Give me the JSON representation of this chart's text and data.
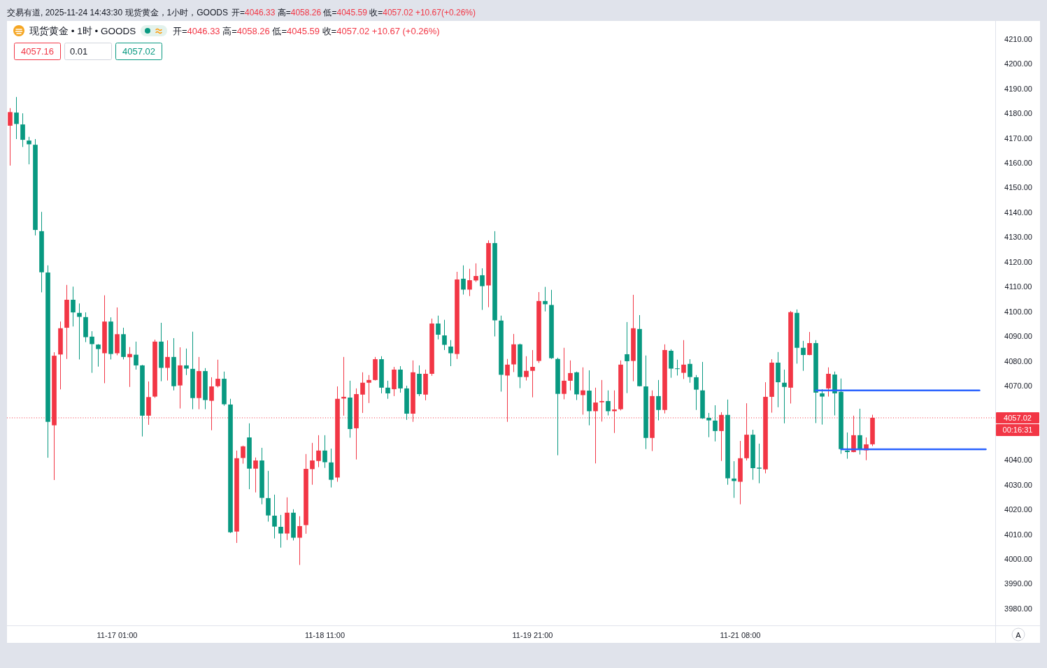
{
  "chart_data": {
    "type": "candlestick",
    "title": "交易有道, 2025-11-24 14:43:30 现货黄金，1小时，GOODS",
    "subtitle": "现货黄金 • 1时 • GOODS",
    "annotations": [
      "开=4046.33 高=4058.26 低=4045.59 收=4057.02 +10.67(+0.26%)",
      "开=4046.33 高=4058.26 低=4045.59 收=4057.02 +10.67 (+0.26%)",
      "4057.16",
      "0.01",
      "4057.02",
      "00:16:31",
      "A"
    ],
    "categories": [
      null,
      null,
      null,
      null,
      null,
      null,
      null,
      null,
      null,
      null,
      null,
      null,
      null,
      null,
      null,
      null,
      null,
      "11-17 01:00",
      null,
      null,
      null,
      null,
      null,
      null,
      null,
      null,
      null,
      null,
      null,
      null,
      null,
      null,
      null,
      null,
      null,
      null,
      null,
      null,
      null,
      null,
      null,
      null,
      null,
      null,
      null,
      null,
      null,
      null,
      null,
      null,
      "11-18 11:00",
      null,
      null,
      null,
      null,
      null,
      null,
      null,
      null,
      null,
      null,
      null,
      null,
      null,
      null,
      null,
      null,
      null,
      null,
      null,
      null,
      null,
      null,
      null,
      null,
      null,
      null,
      null,
      null,
      null,
      null,
      null,
      null,
      "11-19 21:00",
      null,
      null,
      null,
      null,
      null,
      null,
      null,
      null,
      null,
      null,
      null,
      null,
      null,
      null,
      null,
      null,
      null,
      null,
      null,
      null,
      null,
      null,
      null,
      null,
      null,
      null,
      null,
      null,
      null,
      null,
      null,
      null,
      "11-21 08:00",
      null,
      null,
      null,
      null,
      null,
      null,
      null,
      null,
      null,
      null,
      null,
      null,
      null,
      null,
      null,
      null,
      null,
      null,
      null,
      null,
      null,
      null,
      null,
      null,
      null,
      null,
      null,
      null,
      null,
      null,
      null,
      null,
      null,
      null,
      null,
      null,
      null,
      null,
      null,
      null
    ],
    "ohlc": [
      [
        4175.0,
        4182.1,
        4158.9,
        4180.5
      ],
      [
        4180.3,
        4186.6,
        4169.6,
        4175.7
      ],
      [
        4175.5,
        4180.0,
        4166.4,
        4169.3
      ],
      [
        4169.0,
        4170.5,
        4159.4,
        4167.5
      ],
      [
        4167.3,
        4169.6,
        4130.7,
        4132.9
      ],
      [
        4132.4,
        4140.2,
        4107.7,
        4115.8
      ],
      [
        4115.7,
        4118.6,
        4040.9,
        4055.4
      ],
      [
        4054.0,
        4083.5,
        4031.9,
        4082.1
      ],
      [
        4082.6,
        4095.9,
        4068.5,
        4093.2
      ],
      [
        4093.4,
        4110.7,
        4080.8,
        4104.7
      ],
      [
        4104.7,
        4110.0,
        4093.9,
        4099.6
      ],
      [
        4099.4,
        4103.2,
        4080.6,
        4097.8
      ],
      [
        4097.7,
        4099.6,
        4087.6,
        4089.6
      ],
      [
        4089.8,
        4092.0,
        4075.2,
        4086.8
      ],
      [
        4086.6,
        4086.8,
        4077.7,
        4084.8
      ],
      [
        4083.1,
        4106.5,
        4071.0,
        4095.9
      ],
      [
        4095.9,
        4097.6,
        4080.6,
        4082.8
      ],
      [
        4083.1,
        4101.6,
        4082.3,
        4090.8
      ],
      [
        4090.8,
        4093.4,
        4080.6,
        4081.6
      ],
      [
        4081.5,
        4085.6,
        4069.5,
        4082.8
      ],
      [
        4082.5,
        4087.8,
        4076.5,
        4078.2
      ],
      [
        4078.2,
        4078.4,
        4049.5,
        4057.9
      ],
      [
        4057.9,
        4071.7,
        4054.2,
        4065.4
      ],
      [
        4065.6,
        4088.6,
        4065.1,
        4087.8
      ],
      [
        4087.8,
        4095.4,
        4071.8,
        4077.2
      ],
      [
        4077.2,
        4088.3,
        4072.1,
        4081.6
      ],
      [
        4081.6,
        4089.2,
        4068.1,
        4069.8
      ],
      [
        4070.1,
        4085.5,
        4060.8,
        4078.2
      ],
      [
        4078.2,
        4085.0,
        4074.3,
        4076.9
      ],
      [
        4076.8,
        4091.8,
        4060.5,
        4065.0
      ],
      [
        4065.0,
        4081.6,
        4060.5,
        4075.9
      ],
      [
        4075.9,
        4077.1,
        4060.5,
        4064.2
      ],
      [
        4063.9,
        4073.4,
        4052.0,
        4069.7
      ],
      [
        4069.8,
        4080.5,
        4069.3,
        4072.8
      ],
      [
        4072.8,
        4075.7,
        4061.9,
        4062.5
      ],
      [
        4062.4,
        4064.7,
        4010.5,
        4010.8
      ],
      [
        4011.1,
        4043.8,
        4006.5,
        4040.7
      ],
      [
        4040.8,
        4045.8,
        4038.5,
        4045.5
      ],
      [
        4049.1,
        4054.8,
        4028.2,
        4036.5
      ],
      [
        4036.5,
        4041.0,
        4026.9,
        4039.8
      ],
      [
        4039.8,
        4044.9,
        4022.1,
        4024.7
      ],
      [
        4024.6,
        4035.6,
        4015.1,
        4017.6
      ],
      [
        4017.5,
        4026.0,
        4008.3,
        4013.1
      ],
      [
        4013.0,
        4017.8,
        4004.6,
        4010.3
      ],
      [
        4010.3,
        4024.9,
        4007.7,
        4018.7
      ],
      [
        4018.7,
        4020.1,
        4007.5,
        4008.6
      ],
      [
        4008.6,
        4017.3,
        3997.6,
        4013.3
      ],
      [
        4013.7,
        4042.4,
        4010.2,
        4036.4
      ],
      [
        4036.3,
        4046.9,
        4030.0,
        4039.8
      ],
      [
        4039.6,
        4050.0,
        4037.1,
        4043.8
      ],
      [
        4043.8,
        4050.0,
        4036.8,
        4039.1
      ],
      [
        4039.0,
        4044.6,
        4028.9,
        4032.0
      ],
      [
        4032.9,
        4069.7,
        4031.2,
        4064.7
      ],
      [
        4064.8,
        4081.6,
        4057.9,
        4065.5
      ],
      [
        4065.2,
        4072.0,
        4049.0,
        4052.5
      ],
      [
        4052.8,
        4068.9,
        4040.2,
        4066.6
      ],
      [
        4066.4,
        4075.4,
        4059.0,
        4071.2
      ],
      [
        4071.2,
        4074.3,
        4063.0,
        4072.3
      ],
      [
        4072.3,
        4081.6,
        4072.1,
        4080.7
      ],
      [
        4080.7,
        4081.9,
        4066.9,
        4069.2
      ],
      [
        4069.2,
        4072.0,
        4064.7,
        4066.9
      ],
      [
        4068.6,
        4077.6,
        4065.8,
        4076.5
      ],
      [
        4076.5,
        4077.9,
        4067.2,
        4068.9
      ],
      [
        4068.9,
        4070.0,
        4056.2,
        4058.7
      ],
      [
        4058.7,
        4080.2,
        4055.4,
        4075.4
      ],
      [
        4074.8,
        4078.2,
        4065.8,
        4066.6
      ],
      [
        4066.4,
        4076.5,
        4064.1,
        4074.8
      ],
      [
        4074.8,
        4097.1,
        4074.0,
        4095.1
      ],
      [
        4095.1,
        4098.3,
        4088.7,
        4090.6
      ],
      [
        4090.3,
        4096.6,
        4084.4,
        4086.5
      ],
      [
        4085.8,
        4088.4,
        4077.9,
        4083.1
      ],
      [
        4082.8,
        4116.0,
        4080.8,
        4112.9
      ],
      [
        4113.2,
        4118.6,
        4106.8,
        4108.8
      ],
      [
        4108.8,
        4117.2,
        4106.2,
        4112.6
      ],
      [
        4112.5,
        4119.4,
        4111.9,
        4114.3
      ],
      [
        4114.6,
        4117.4,
        4100.6,
        4110.2
      ],
      [
        4110.5,
        4128.7,
        4101.7,
        4127.6
      ],
      [
        4127.6,
        4132.4,
        4089.9,
        4096.4
      ],
      [
        4096.3,
        4098.3,
        4067.6,
        4074.4
      ],
      [
        4074.1,
        4080.8,
        4055.4,
        4078.5
      ],
      [
        4078.6,
        4090.9,
        4075.5,
        4086.7
      ],
      [
        4086.7,
        4087.0,
        4069.0,
        4073.5
      ],
      [
        4073.5,
        4081.9,
        4072.1,
        4076.0
      ],
      [
        4076.0,
        4084.4,
        4065.3,
        4077.6
      ],
      [
        4080.0,
        4107.8,
        4079.2,
        4104.2
      ],
      [
        4104.2,
        4109.9,
        4100.0,
        4102.9
      ],
      [
        4102.6,
        4108.7,
        4080.8,
        4081.1
      ],
      [
        4080.8,
        4081.3,
        4041.9,
        4066.7
      ],
      [
        4066.7,
        4085.3,
        4064.5,
        4072.0
      ],
      [
        4072.0,
        4080.2,
        4068.1,
        4075.1
      ],
      [
        4075.4,
        4075.7,
        4064.2,
        4066.5
      ],
      [
        4066.2,
        4077.4,
        4058.3,
        4068.1
      ],
      [
        4068.0,
        4076.2,
        4054.0,
        4059.7
      ],
      [
        4059.7,
        4069.2,
        4038.6,
        4063.2
      ],
      [
        4063.3,
        4072.3,
        4055.5,
        4063.8
      ],
      [
        4063.8,
        4068.1,
        4058.0,
        4059.7
      ],
      [
        4059.7,
        4068.1,
        4050.9,
        4060.4
      ],
      [
        4060.5,
        4080.2,
        4060.0,
        4078.5
      ],
      [
        4082.7,
        4095.7,
        4067.0,
        4079.9
      ],
      [
        4080.0,
        4106.7,
        4071.8,
        4093.2
      ],
      [
        4092.9,
        4098.5,
        4069.7,
        4069.8
      ],
      [
        4069.7,
        4082.2,
        4044.4,
        4048.9
      ],
      [
        4048.9,
        4068.1,
        4043.6,
        4065.8
      ],
      [
        4065.8,
        4072.3,
        4056.0,
        4060.2
      ],
      [
        4060.2,
        4086.7,
        4058.8,
        4084.4
      ],
      [
        4084.1,
        4084.7,
        4073.2,
        4076.9
      ],
      [
        4077.0,
        4080.5,
        4074.1,
        4076.8
      ],
      [
        4075.2,
        4088.4,
        4072.7,
        4078.5
      ],
      [
        4078.8,
        4080.7,
        4071.2,
        4073.5
      ],
      [
        4073.4,
        4074.3,
        4060.2,
        4068.4
      ],
      [
        4068.1,
        4079.6,
        4056.6,
        4056.8
      ],
      [
        4057.0,
        4059.0,
        4049.2,
        4056.0
      ],
      [
        4055.9,
        4062.1,
        4047.5,
        4051.7
      ],
      [
        4051.7,
        4059.3,
        4039.6,
        4058.2
      ],
      [
        4058.2,
        4064.4,
        4030.0,
        4032.6
      ],
      [
        4032.5,
        4039.5,
        4024.7,
        4031.5
      ],
      [
        4031.2,
        4047.7,
        4022.1,
        4040.7
      ],
      [
        4040.7,
        4062.9,
        4039.8,
        4050.2
      ],
      [
        4050.2,
        4052.2,
        4032.0,
        4036.7
      ],
      [
        4036.9,
        4046.6,
        4030.6,
        4036.5
      ],
      [
        4036.2,
        4071.4,
        4034.6,
        4065.5
      ],
      [
        4065.5,
        4080.7,
        4059.1,
        4079.3
      ],
      [
        4079.3,
        4083.6,
        4061.3,
        4071.4
      ],
      [
        4071.2,
        4076.5,
        4054.8,
        4069.5
      ],
      [
        4069.2,
        4100.2,
        4062.8,
        4099.7
      ],
      [
        4099.4,
        4100.8,
        4078.9,
        4085.3
      ],
      [
        4085.3,
        4088.1,
        4076.0,
        4082.4
      ],
      [
        4082.4,
        4091.7,
        4082.3,
        4087.2
      ],
      [
        4087.2,
        4088.4,
        4054.9,
        4067.2
      ],
      [
        4066.9,
        4068.6,
        4054.3,
        4065.6
      ],
      [
        4068.9,
        4077.4,
        4065.6,
        4074.8
      ],
      [
        4074.5,
        4075.7,
        4058.0,
        4066.9
      ],
      [
        4067.5,
        4072.9,
        4042.5,
        4044.4
      ],
      [
        4043.8,
        4051.1,
        4040.5,
        4043.2
      ],
      [
        4043.2,
        4057.9,
        4043.1,
        4050.0
      ],
      [
        4050.0,
        4060.7,
        4042.2,
        4044.1
      ],
      [
        4043.9,
        4049.1,
        4039.9,
        4046.3
      ],
      [
        4046.33,
        4058.26,
        4045.59,
        4057.02
      ],
      null,
      null,
      null,
      null,
      null,
      null,
      null,
      null,
      null,
      null,
      null,
      null,
      null,
      null,
      null,
      null,
      null,
      null,
      null
    ],
    "series": [
      {
        "type": "line",
        "color": "#2962ff",
        "values": [
          null,
          null,
          null,
          null,
          null,
          null,
          null,
          null,
          null,
          null,
          null,
          null,
          null,
          null,
          null,
          null,
          null,
          null,
          null,
          null,
          null,
          null,
          null,
          null,
          null,
          null,
          null,
          null,
          null,
          null,
          null,
          null,
          null,
          null,
          null,
          null,
          null,
          null,
          null,
          null,
          null,
          null,
          null,
          null,
          null,
          null,
          null,
          null,
          null,
          null,
          null,
          null,
          null,
          null,
          null,
          null,
          null,
          null,
          null,
          null,
          null,
          null,
          null,
          null,
          null,
          null,
          null,
          null,
          null,
          null,
          null,
          null,
          null,
          null,
          null,
          null,
          null,
          null,
          null,
          null,
          null,
          null,
          null,
          null,
          null,
          null,
          null,
          null,
          null,
          null,
          null,
          null,
          null,
          null,
          null,
          null,
          null,
          null,
          null,
          null,
          null,
          null,
          null,
          null,
          null,
          null,
          null,
          null,
          null,
          null,
          null,
          null,
          null,
          null,
          null,
          null,
          null,
          null,
          null,
          null,
          null,
          null,
          null,
          null,
          null,
          null,
          null,
          null,
          4068.1,
          4068.1,
          4068.1,
          4068.1,
          4068.1,
          4068.1,
          4068.1,
          4068.1,
          4068.1,
          4068.1,
          4068.1,
          4068.1,
          4068.1,
          4068.1,
          4068.1,
          4068.1,
          4068.1,
          4068.1,
          4068.1,
          4068.1,
          4068.1,
          4068.1,
          4068.1,
          4068.1,
          4068.1,
          4068.1,
          4068.1,
          null,
          null
        ]
      },
      {
        "type": "line",
        "color": "#2962ff",
        "values": [
          null,
          null,
          null,
          null,
          null,
          null,
          null,
          null,
          null,
          null,
          null,
          null,
          null,
          null,
          null,
          null,
          null,
          null,
          null,
          null,
          null,
          null,
          null,
          null,
          null,
          null,
          null,
          null,
          null,
          null,
          null,
          null,
          null,
          null,
          null,
          null,
          null,
          null,
          null,
          null,
          null,
          null,
          null,
          null,
          null,
          null,
          null,
          null,
          null,
          null,
          null,
          null,
          null,
          null,
          null,
          null,
          null,
          null,
          null,
          null,
          null,
          null,
          null,
          null,
          null,
          null,
          null,
          null,
          null,
          null,
          null,
          null,
          null,
          null,
          null,
          null,
          null,
          null,
          null,
          null,
          null,
          null,
          null,
          null,
          null,
          null,
          null,
          null,
          null,
          null,
          null,
          null,
          null,
          null,
          null,
          null,
          null,
          null,
          null,
          null,
          null,
          null,
          null,
          null,
          null,
          null,
          null,
          null,
          null,
          null,
          null,
          null,
          null,
          null,
          null,
          null,
          null,
          null,
          null,
          null,
          null,
          null,
          null,
          null,
          null,
          null,
          null,
          null,
          null,
          null,
          null,
          null,
          4044.3,
          4044.3,
          4044.3,
          4044.3,
          4044.3,
          4044.3,
          4044.3,
          4044.3,
          4044.3,
          4044.3,
          4044.3,
          4044.3,
          4044.3,
          4044.3,
          4044.3,
          4044.3,
          4044.3,
          4044.3,
          4044.3,
          4044.3,
          4044.3,
          4044.3,
          4044.3,
          4044.3,
          null
        ]
      }
    ],
    "ylim": [
      3973.2,
      4217.3
    ],
    "yticks": [
      {
        "value": 3980,
        "label": "3980.00"
      },
      {
        "value": 3990,
        "label": "3990.00"
      },
      {
        "value": 4000,
        "label": "4000.00"
      },
      {
        "value": 4010,
        "label": "4010.00"
      },
      {
        "value": 4020,
        "label": "4020.00"
      },
      {
        "value": 4030,
        "label": "4030.00"
      },
      {
        "value": 4040,
        "label": "4040.00"
      },
      {
        "value": 4070,
        "label": "4070.00"
      },
      {
        "value": 4080,
        "label": "4080.00"
      },
      {
        "value": 4090,
        "label": "4090.00"
      },
      {
        "value": 4100,
        "label": "4100.00"
      },
      {
        "value": 4110,
        "label": "4110.00"
      },
      {
        "value": 4120,
        "label": "4120.00"
      },
      {
        "value": 4130,
        "label": "4130.00"
      },
      {
        "value": 4140,
        "label": "4140.00"
      },
      {
        "value": 4150,
        "label": "4150.00"
      },
      {
        "value": 4160,
        "label": "4160.00"
      },
      {
        "value": 4170,
        "label": "4170.00"
      },
      {
        "value": 4180,
        "label": "4180.00"
      },
      {
        "value": 4190,
        "label": "4190.00"
      },
      {
        "value": 4200,
        "label": "4200.00"
      },
      {
        "value": 4210,
        "label": "4210.00"
      }
    ],
    "ref_lines": [
      {
        "axis": "y",
        "value": 4057.02,
        "label": "4057.02",
        "color": "#f23645",
        "line_style": "dotted"
      }
    ]
  }
}
